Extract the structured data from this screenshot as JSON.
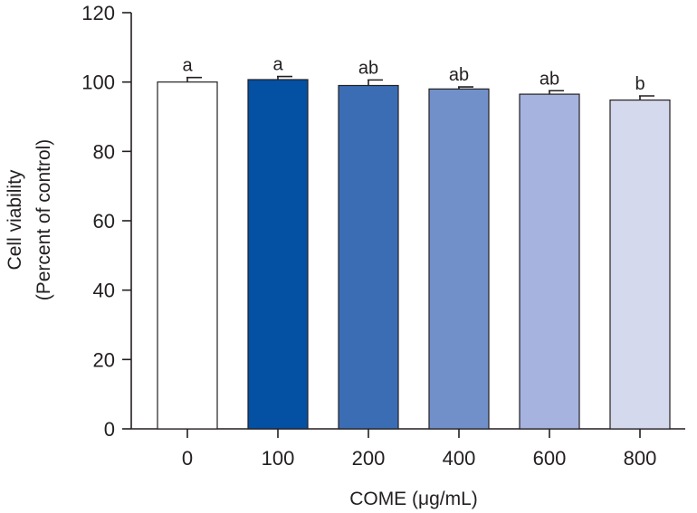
{
  "chart_data": {
    "type": "bar",
    "title": "",
    "xlabel": "COME (μg/mL)",
    "ylabel_lines": [
      "Cell viability",
      "(Percent of control)"
    ],
    "ylim": [
      0,
      120
    ],
    "yticks": [
      0,
      20,
      40,
      60,
      80,
      100,
      120
    ],
    "categories": [
      "0",
      "100",
      "200",
      "400",
      "600",
      "800"
    ],
    "values": [
      100,
      100.7,
      99,
      98,
      96.5,
      94.8
    ],
    "errors": [
      1.3,
      0.9,
      1.6,
      0.6,
      1.0,
      1.2
    ],
    "significance": [
      "a",
      "a",
      "ab",
      "ab",
      "ab",
      "b"
    ],
    "colors": [
      "#ffffff",
      "#0450a2",
      "#3b6db5",
      "#7190c9",
      "#a5b3de",
      "#d5d9ee"
    ],
    "axis_color": "#231f20"
  }
}
